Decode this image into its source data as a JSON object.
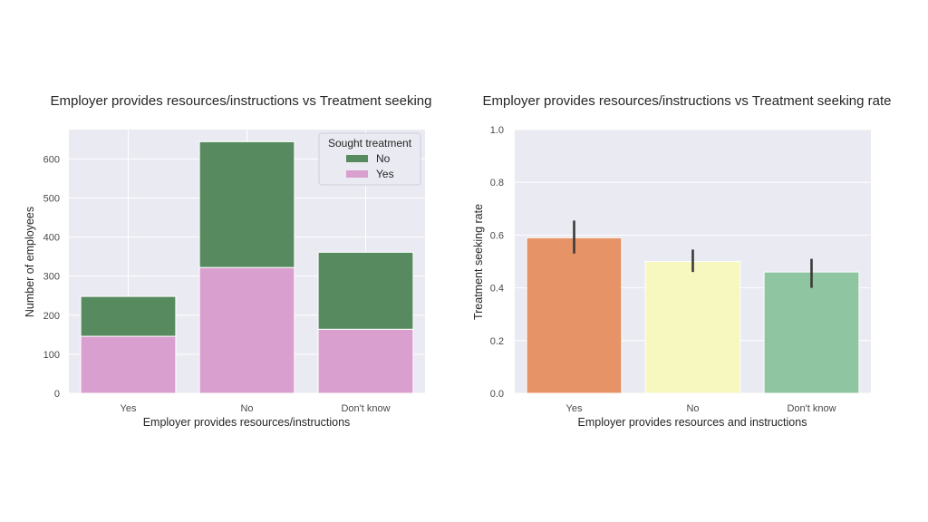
{
  "chart_data": [
    {
      "type": "bar",
      "stacked": true,
      "title": "Employer provides resources/instructions vs Treatment seeking",
      "xlabel": "Employer provides resources/instructions",
      "ylabel": "Number of employees",
      "categories": [
        "Yes",
        "No",
        "Don't know"
      ],
      "series": [
        {
          "name": "Yes",
          "color": "#d99fce",
          "values": [
            146,
            322,
            164
          ]
        },
        {
          "name": "No",
          "color": "#578b5f",
          "values": [
            102,
            322,
            197
          ]
        }
      ],
      "ylim": [
        0,
        675
      ],
      "yticks": [
        0,
        100,
        200,
        300,
        400,
        500,
        600
      ],
      "grid": true,
      "legend": {
        "title": "Sought treatment",
        "placement": "top-right",
        "entries": [
          {
            "label": "No",
            "color": "#578b5f"
          },
          {
            "label": "Yes",
            "color": "#d99fce"
          }
        ]
      }
    },
    {
      "type": "bar",
      "title": "Employer provides resources/instructions vs Treatment seeking rate",
      "xlabel": "Employer provides resources and instructions",
      "ylabel": "Treatment seeking rate",
      "categories": [
        "Yes",
        "No",
        "Don't know"
      ],
      "values": [
        0.59,
        0.5,
        0.46
      ],
      "error_bars": [
        [
          0.53,
          0.655
        ],
        [
          0.46,
          0.545
        ],
        [
          0.4,
          0.51
        ]
      ],
      "colors": [
        "#e59367",
        "#f7f7c0",
        "#8fc5a1"
      ],
      "ylim": [
        0,
        1.0
      ],
      "yticks": [
        "0.0",
        "0.2",
        "0.4",
        "0.6",
        "0.8",
        "1.0"
      ],
      "grid": true
    }
  ]
}
